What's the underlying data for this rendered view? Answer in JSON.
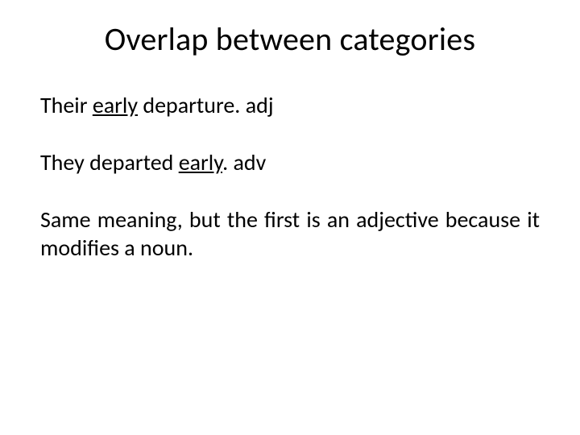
{
  "slide": {
    "title": "Overlap between categories",
    "line1": {
      "pre": "Their ",
      "underlined": "early",
      "post": " departure. adj"
    },
    "line2": {
      "pre": "They departed ",
      "underlined": "early",
      "post": ". adv"
    },
    "paragraph": "Same meaning, but the first is an adjective because it modifies a noun."
  },
  "colors": {
    "background": "#ffffff",
    "text": "#000000"
  },
  "typography": {
    "title_fontsize": 40,
    "body_fontsize": 28,
    "font_family": "Calibri"
  }
}
